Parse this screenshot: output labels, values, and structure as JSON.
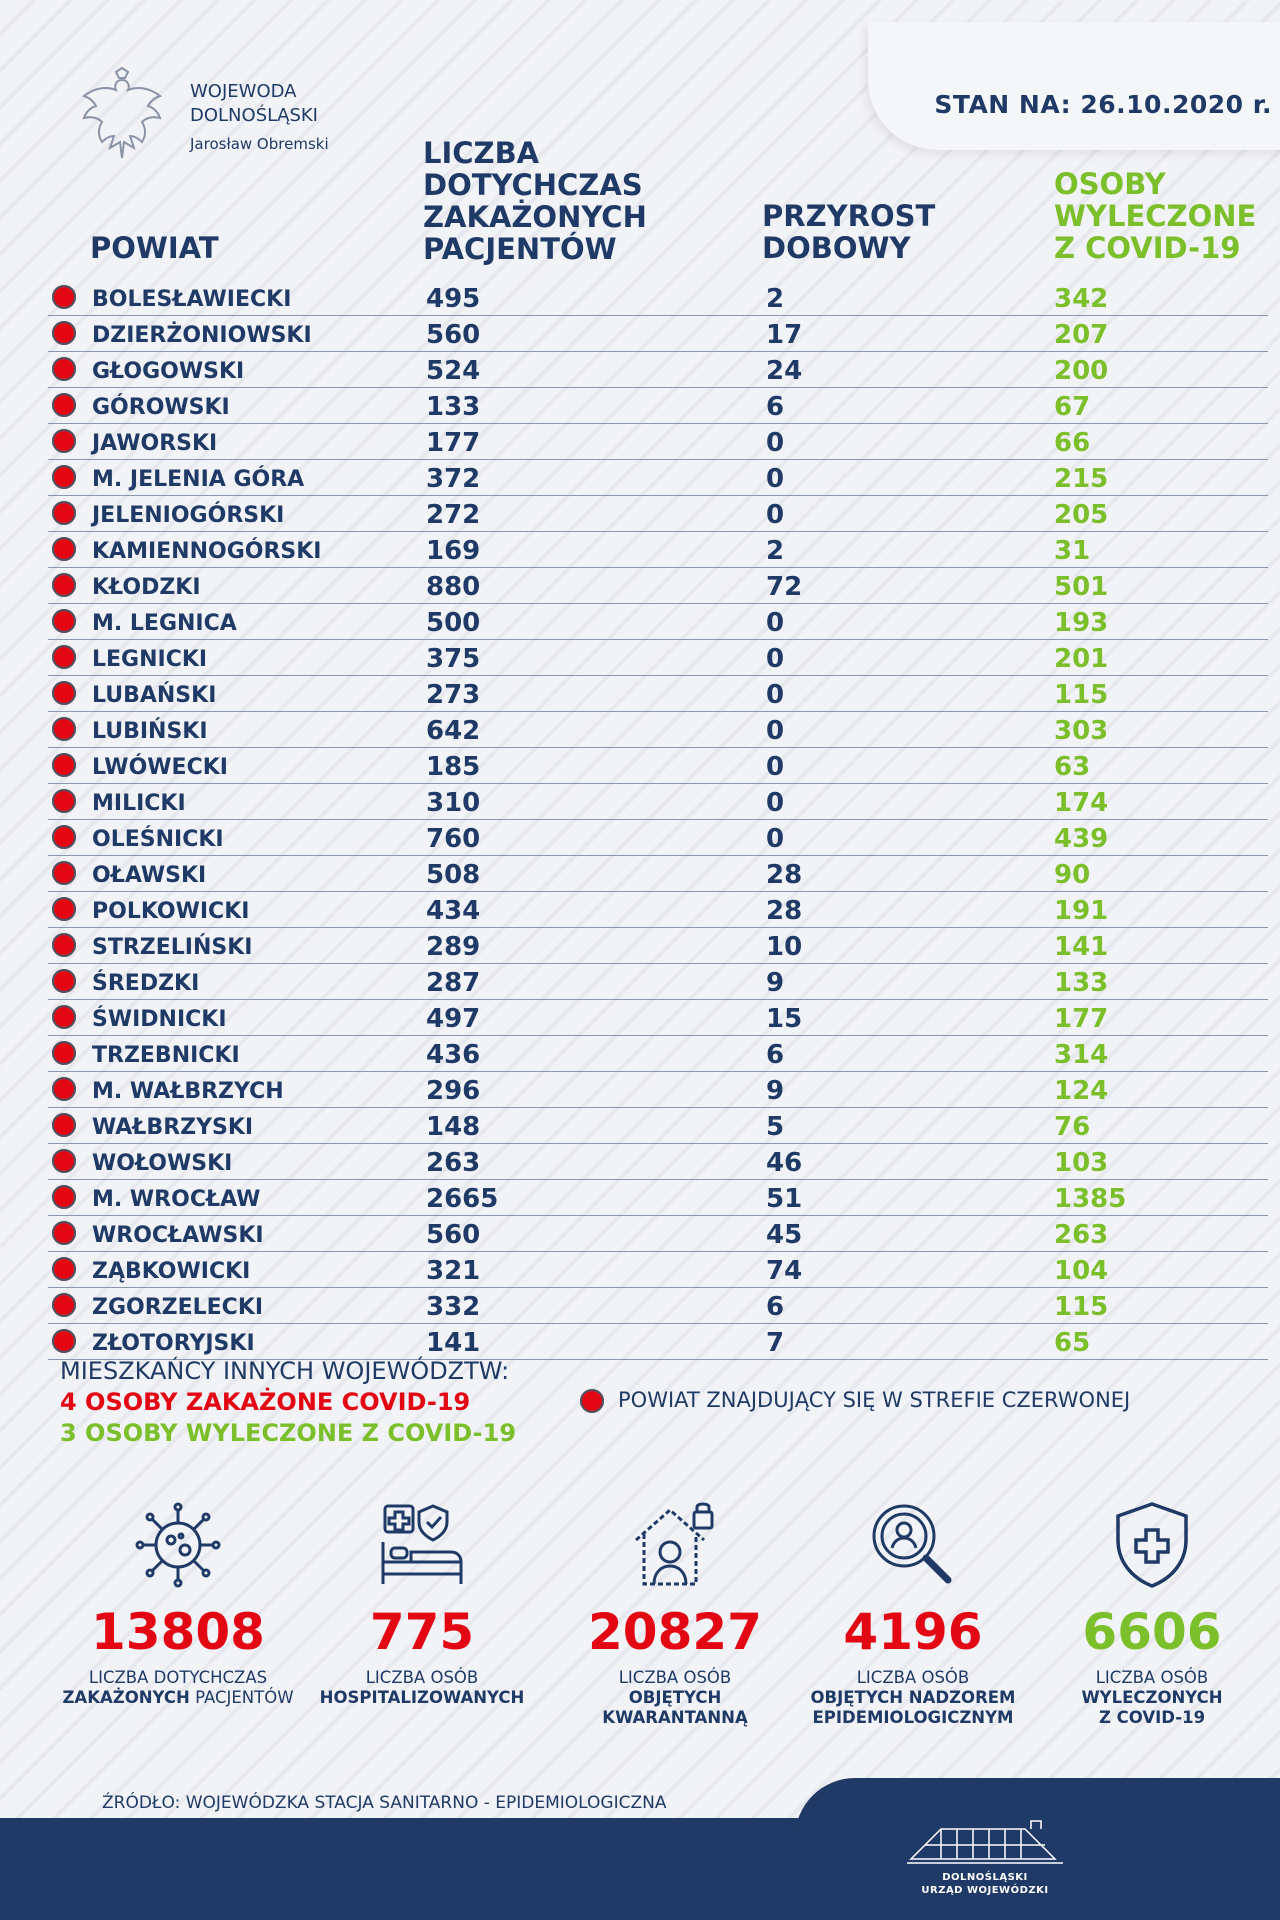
{
  "date_label": "STAN NA: 26.10.2020 r.",
  "issuer": {
    "line1": "WOJEWODA",
    "line2": "DOLNOŚLĄSKI",
    "name": "Jarosław Obremski"
  },
  "headers": {
    "powiat": "POWIAT",
    "cases": [
      "LICZBA",
      "DOTYCHCZAS",
      "ZAKAŻONYCH",
      "PACJENTÓW"
    ],
    "increase": [
      "PRZYROST",
      "DOBOWY"
    ],
    "recovered": [
      "OSOBY",
      "WYLECZONE",
      "Z COVID-19"
    ]
  },
  "rows": [
    {
      "name": "BOLESŁAWIECKI",
      "cases": "495",
      "increase": "2",
      "recovered": "342"
    },
    {
      "name": "DZIERŻONIOWSKI",
      "cases": "560",
      "increase": "17",
      "recovered": "207"
    },
    {
      "name": "GŁOGOWSKI",
      "cases": "524",
      "increase": "24",
      "recovered": "200"
    },
    {
      "name": "GÓROWSKI",
      "cases": "133",
      "increase": "6",
      "recovered": "67"
    },
    {
      "name": "JAWORSKI",
      "cases": "177",
      "increase": "0",
      "recovered": "66"
    },
    {
      "name": "M. JELENIA GÓRA",
      "cases": "372",
      "increase": "0",
      "recovered": "215"
    },
    {
      "name": "JELENIOGÓRSKI",
      "cases": "272",
      "increase": "0",
      "recovered": "205"
    },
    {
      "name": "KAMIENNOGÓRSKI",
      "cases": "169",
      "increase": "2",
      "recovered": "31"
    },
    {
      "name": "KŁODZKI",
      "cases": "880",
      "increase": "72",
      "recovered": "501"
    },
    {
      "name": "M. LEGNICA",
      "cases": "500",
      "increase": "0",
      "recovered": "193"
    },
    {
      "name": "LEGNICKI",
      "cases": "375",
      "increase": "0",
      "recovered": "201"
    },
    {
      "name": "LUBAŃSKI",
      "cases": "273",
      "increase": "0",
      "recovered": "115"
    },
    {
      "name": "LUBIŃSKI",
      "cases": "642",
      "increase": "0",
      "recovered": "303"
    },
    {
      "name": "LWÓWECKI",
      "cases": "185",
      "increase": "0",
      "recovered": "63"
    },
    {
      "name": "MILICKI",
      "cases": "310",
      "increase": "0",
      "recovered": "174"
    },
    {
      "name": "OLEŚNICKI",
      "cases": "760",
      "increase": "0",
      "recovered": "439"
    },
    {
      "name": "OŁAWSKI",
      "cases": "508",
      "increase": "28",
      "recovered": "90"
    },
    {
      "name": "POLKOWICKI",
      "cases": "434",
      "increase": "28",
      "recovered": "191"
    },
    {
      "name": "STRZELIŃSKI",
      "cases": "289",
      "increase": "10",
      "recovered": "141"
    },
    {
      "name": "ŚREDZKI",
      "cases": "287",
      "increase": "9",
      "recovered": "133"
    },
    {
      "name": "ŚWIDNICKI",
      "cases": "497",
      "increase": "15",
      "recovered": "177"
    },
    {
      "name": "TRZEBNICKI",
      "cases": "436",
      "increase": "6",
      "recovered": "314"
    },
    {
      "name": "M. WAŁBRZYCH",
      "cases": "296",
      "increase": "9",
      "recovered": "124"
    },
    {
      "name": "WAŁBRZYSKI",
      "cases": "148",
      "increase": "5",
      "recovered": "76"
    },
    {
      "name": "WOŁOWSKI",
      "cases": "263",
      "increase": "46",
      "recovered": "103"
    },
    {
      "name": "M. WROCŁAW",
      "cases": "2665",
      "increase": "51",
      "recovered": "1385"
    },
    {
      "name": "WROCŁAWSKI",
      "cases": "560",
      "increase": "45",
      "recovered": "263"
    },
    {
      "name": "ZĄBKOWICKI",
      "cases": "321",
      "increase": "74",
      "recovered": "104"
    },
    {
      "name": "ZGORZELECKI",
      "cases": "332",
      "increase": "6",
      "recovered": "115"
    },
    {
      "name": "ZŁOTORYJSKI",
      "cases": "141",
      "increase": "7",
      "recovered": "65"
    }
  ],
  "other_voivodeships": {
    "title": "MIESZKAŃCY INNYCH WOJEWÓDZTW:",
    "infected": "4 OSOBY ZAKAŻONE COVID-19",
    "recovered": "3 OSOBY WYLECZONE Z COVID-19"
  },
  "legend": "POWIAT ZNAJDUJĄCY SIĘ W STREFIE CZERWONEJ",
  "stats": [
    {
      "icon": "virus-icon",
      "value": "13808",
      "color": "#e30613",
      "line1": "LICZBA DOTYCHCZAS",
      "line2a": "ZAKAŻONYCH",
      "line2b": " PACJENTÓW",
      "line3": ""
    },
    {
      "icon": "hospital-bed-icon",
      "value": "775",
      "color": "#e30613",
      "line1": "LICZBA OSÓB",
      "line2a": "HOSPITALIZOWANYCH",
      "line2b": "",
      "line3": ""
    },
    {
      "icon": "house-person-icon",
      "value": "20827",
      "color": "#e30613",
      "line1": "LICZBA OSÓB",
      "line2a": "OBJĘTYCH",
      "line2b": "",
      "line3": "KWARANTANNĄ"
    },
    {
      "icon": "magnifier-person-icon",
      "value": "4196",
      "color": "#e30613",
      "line1": "LICZBA OSÓB",
      "line2a": "OBJĘTYCH NADZOREM",
      "line2b": "",
      "line3": "EPIDEMIOLOGICZNYM"
    },
    {
      "icon": "shield-cross-icon",
      "value": "6606",
      "color": "#7bbf2b",
      "line1": "LICZBA OSÓB",
      "line2a": "WYLECZONYCH",
      "line2b": "",
      "line3": "Z COVID-19"
    }
  ],
  "source": "ŹRÓDŁO: WOJEWÓDZKA STACJA SANITARNO - EPIDEMIOLOGICZNA",
  "footer_logo": {
    "line1": "DOLNOŚLĄSKI",
    "line2": "URZĄD WOJEWÓDZKI"
  }
}
